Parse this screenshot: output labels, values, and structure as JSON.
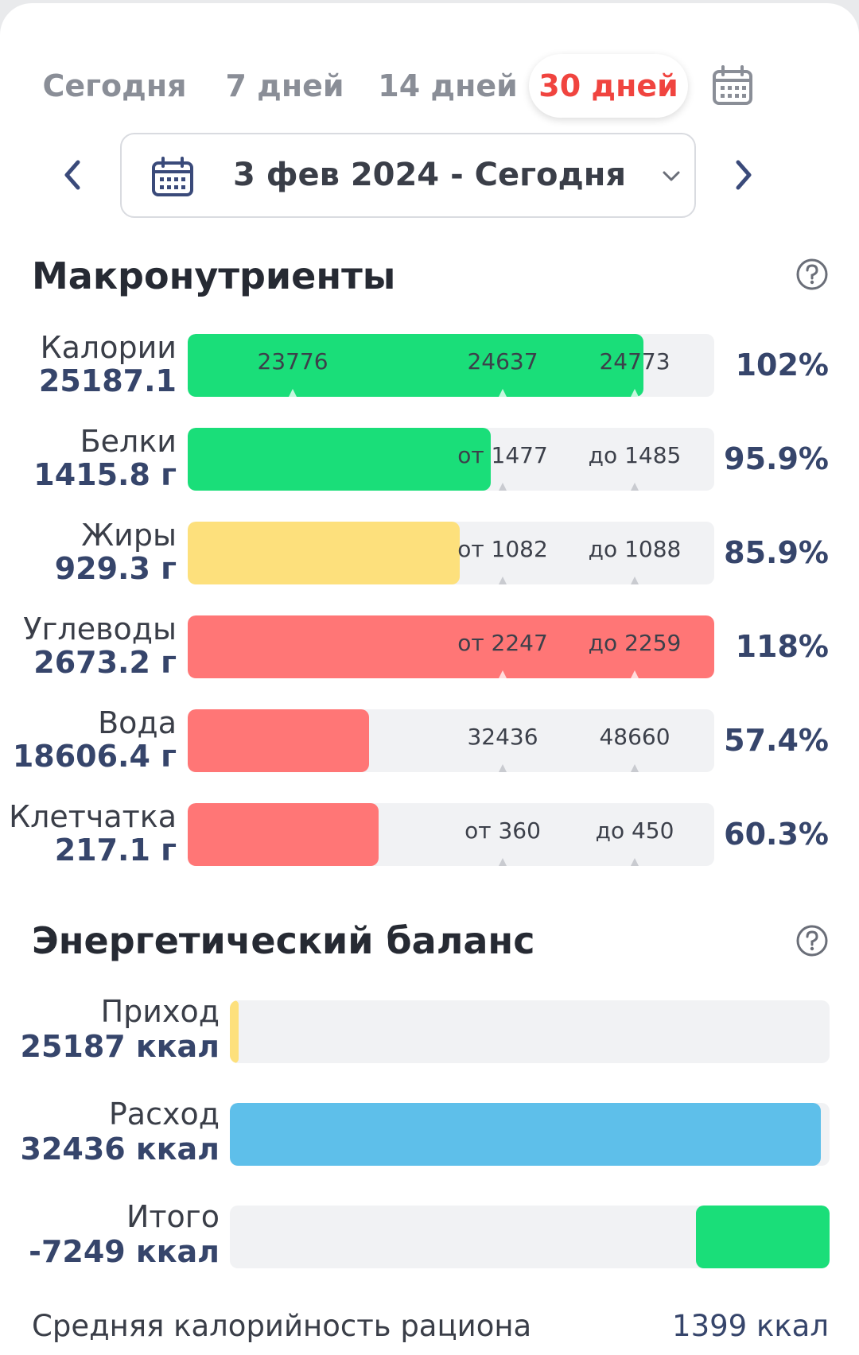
{
  "period_tabs": [
    {
      "label": "Сегодня",
      "active": false
    },
    {
      "label": "7 дней",
      "active": false
    },
    {
      "label": "14 дней",
      "active": false
    },
    {
      "label": "30 дней",
      "active": true
    }
  ],
  "icons": {
    "calendar": "calendar-icon",
    "prev": "chevron-left-icon",
    "next": "chevron-right-icon",
    "dropdown": "chevron-down-icon",
    "help": "question-circle-icon"
  },
  "date_range": {
    "label": "3 фев 2024 - Сегодня"
  },
  "macros": {
    "title": "Макронутриенты",
    "rows": [
      {
        "name": "Калории",
        "value": "25187.1",
        "fill_fraction": 0.865,
        "color": "#1ade79",
        "markers": [
          "23776",
          "24637",
          "24773"
        ],
        "percent": "102%"
      },
      {
        "name": "Белки",
        "value": "1415.8 г",
        "fill_fraction": 0.575,
        "color": "#1ade79",
        "markers": [
          "от 1477",
          "до 1485"
        ],
        "percent": "95.9%"
      },
      {
        "name": "Жиры",
        "value": "929.3 г",
        "fill_fraction": 0.516,
        "color": "#fde07c",
        "markers": [
          "от 1082",
          "до 1088"
        ],
        "percent": "85.9%"
      },
      {
        "name": "Углеводы",
        "value": "2673.2 г",
        "fill_fraction": 1.0,
        "color": "#ff7676",
        "markers": [
          "от 2247",
          "до 2259"
        ],
        "percent": "118%"
      },
      {
        "name": "Вода",
        "value": "18606.4 г",
        "fill_fraction": 0.345,
        "color": "#ff7676",
        "markers": [
          "32436",
          "48660"
        ],
        "percent": "57.4%"
      },
      {
        "name": "Клетчатка",
        "value": "217.1 г",
        "fill_fraction": 0.362,
        "color": "#ff7676",
        "markers": [
          "от 360",
          "до 450"
        ],
        "percent": "60.3%"
      }
    ]
  },
  "energy": {
    "title": "Энергетический баланс",
    "rows": [
      {
        "name": "Приход",
        "value": "25187 ккал",
        "fill_fraction": 0.015,
        "color": "#fde07c",
        "align": "left"
      },
      {
        "name": "Расход",
        "value": "32436 ккал",
        "fill_fraction": 0.986,
        "color": "#5ebfea",
        "align": "left"
      },
      {
        "name": "Итого",
        "value": "-7249 ккал",
        "fill_fraction": 0.223,
        "color": "#1ade79",
        "align": "right"
      }
    ]
  },
  "average": {
    "label": "Средняя калорийность рациона",
    "value": "1399 ккал"
  }
}
